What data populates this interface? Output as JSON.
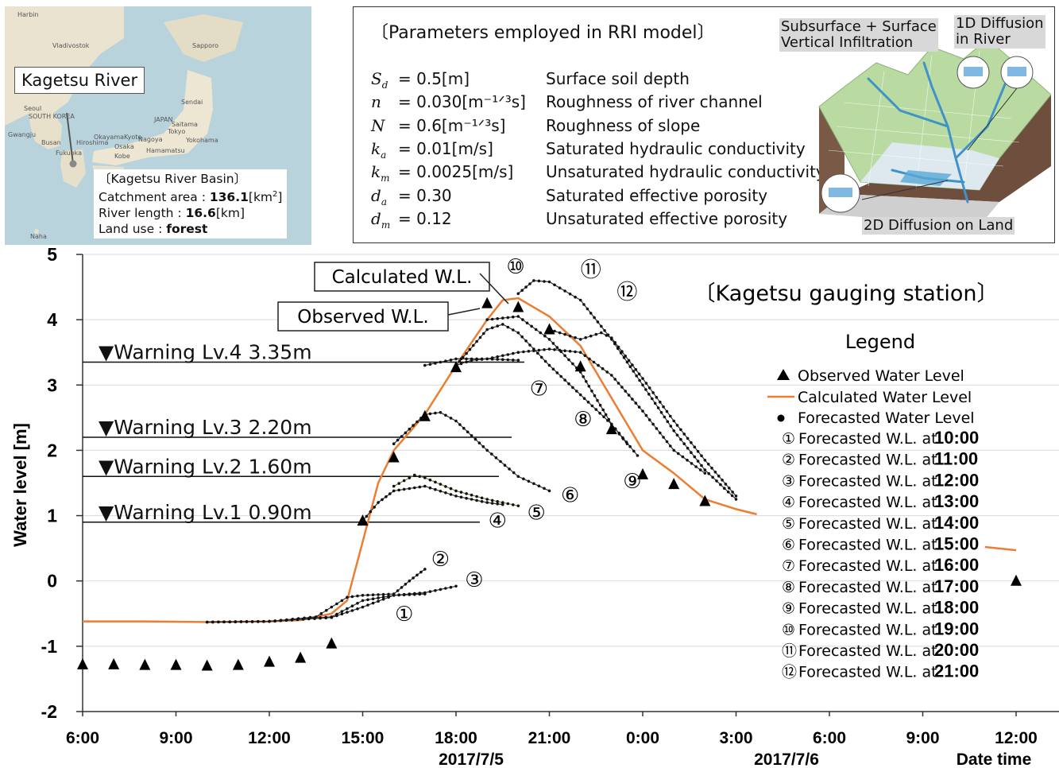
{
  "map": {
    "callout": "Kagetsu River",
    "info_title": "〔Kagetsu River Basin〕",
    "catchment_label": "Catchment area : ",
    "catchment_value": "136.1",
    "catchment_unit": "[km",
    "catchment_unit_sup": "2",
    "catchment_unit_end": "]",
    "river_label": "River length : ",
    "river_value": "16.6",
    "river_unit": "[km]",
    "landuse_label": "Land use : ",
    "landuse_value": "forest",
    "place_labels": [
      "Harbin",
      "Vladivostok",
      "Sapporo",
      "Seoul",
      "SOUTH KOREA",
      "Busan",
      "Fukuoka",
      "Hiroshima",
      "Osaka",
      "Kobe",
      "Nagoya",
      "Tokyo",
      "Yokohama",
      "Sendai",
      "JAPAN",
      "Naha",
      "Gwangju",
      "Okayama",
      "Hamamatsu",
      "Saitama",
      "Kyoto"
    ]
  },
  "params": {
    "title": "〔Parameters employed in RRI model〕",
    "rows": [
      {
        "sym": "S",
        "sub": "d",
        "eq": "= 0.5[m]",
        "desc": "Surface soil depth"
      },
      {
        "sym": "n",
        "sub": "",
        "eq": "= 0.030[m⁻¹ᐟ³s]",
        "desc": "Roughness of river channel"
      },
      {
        "sym": "N",
        "sub": "",
        "eq": "= 0.6[m⁻¹ᐟ³s]",
        "desc": "Roughness of slope"
      },
      {
        "sym": "k",
        "sub": "a",
        "eq": "= 0.01[m/s]",
        "desc": "Saturated hydraulic conductivity"
      },
      {
        "sym": "k",
        "sub": "m",
        "eq": "= 0.0025[m/s]",
        "desc": "Unsaturated hydraulic conductivity"
      },
      {
        "sym": "d",
        "sub": "a",
        "eq": "= 0.30",
        "desc": "Saturated effective porosity"
      },
      {
        "sym": "d",
        "sub": "m",
        "eq": "= 0.12",
        "desc": "Unsaturated effective porosity"
      }
    ],
    "diagram": {
      "label_subsurface_1": "Subsurface + Surface",
      "label_subsurface_2": "Vertical Infiltration",
      "label_river_1": "1D Diffusion",
      "label_river_2": "in River",
      "label_land": "2D Diffusion on Land"
    }
  },
  "chart_data": {
    "type": "line",
    "ylabel": "Water level [m]",
    "xlabel": "Date time",
    "ylim": [
      -2,
      5
    ],
    "yticks": [
      "-2",
      "-1",
      "0",
      "1",
      "2",
      "3",
      "4",
      "5"
    ],
    "xtick_labels": [
      "6:00",
      "9:00",
      "12:00",
      "15:00",
      "18:00",
      "21:00",
      "0:00",
      "3:00",
      "6:00",
      "9:00",
      "12:00"
    ],
    "date_labels": [
      "2017/7/5",
      "2017/7/6"
    ],
    "station_title": "〔Kagetsu gauging station〕",
    "callout_calculated": "Calculated W.L.",
    "callout_observed": "Observed W.L.",
    "warnings": [
      {
        "label": "▼Warning Lv.4  3.35m",
        "level": 3.35
      },
      {
        "label": "▼Warning Lv.3  2.20m",
        "level": 2.2
      },
      {
        "label": "▼Warning Lv.2  1.60m",
        "level": 1.6
      },
      {
        "label": "▼Warning Lv.1  0.90m",
        "level": 0.9
      }
    ],
    "legend_title": "Legend",
    "legend": {
      "observed": "Observed Water Level",
      "calculated": "Calculated Water Level",
      "forecasted": "Forecasted Water Level"
    },
    "forecast_legend_prefix": "Forecasted W.L. at ",
    "forecast_legend": [
      {
        "num": "①",
        "time": "10:00"
      },
      {
        "num": "②",
        "time": "11:00"
      },
      {
        "num": "③",
        "time": "12:00"
      },
      {
        "num": "④",
        "time": "13:00"
      },
      {
        "num": "⑤",
        "time": "14:00"
      },
      {
        "num": "⑥",
        "time": "15:00"
      },
      {
        "num": "⑦",
        "time": "16:00"
      },
      {
        "num": "⑧",
        "time": "17:00"
      },
      {
        "num": "⑨",
        "time": "18:00"
      },
      {
        "num": "⑩",
        "time": "19:00"
      },
      {
        "num": "⑪",
        "time": "20:00"
      },
      {
        "num": "⑫",
        "time": "21:00"
      }
    ],
    "colors": {
      "calculated": "#ed7d31",
      "observed": "#000000",
      "forecast": "#333333",
      "forecast5": "#6b8e3a"
    },
    "observed": [
      {
        "x": "2017-07-05 06:00",
        "y": -1.28
      },
      {
        "x": "2017-07-05 07:00",
        "y": -1.28
      },
      {
        "x": "2017-07-05 08:00",
        "y": -1.29
      },
      {
        "x": "2017-07-05 09:00",
        "y": -1.29
      },
      {
        "x": "2017-07-05 10:00",
        "y": -1.3
      },
      {
        "x": "2017-07-05 11:00",
        "y": -1.29
      },
      {
        "x": "2017-07-05 12:00",
        "y": -1.24
      },
      {
        "x": "2017-07-05 13:00",
        "y": -1.18
      },
      {
        "x": "2017-07-05 14:00",
        "y": -0.96
      },
      {
        "x": "2017-07-05 15:00",
        "y": 0.92
      },
      {
        "x": "2017-07-05 16:00",
        "y": 1.89
      },
      {
        "x": "2017-07-05 17:00",
        "y": 2.52
      },
      {
        "x": "2017-07-05 18:00",
        "y": 3.27
      },
      {
        "x": "2017-07-05 19:00",
        "y": 4.25
      },
      {
        "x": "2017-07-05 20:00",
        "y": 4.19
      },
      {
        "x": "2017-07-05 21:00",
        "y": 3.85
      },
      {
        "x": "2017-07-05 22:00",
        "y": 3.28
      },
      {
        "x": "2017-07-05 23:00",
        "y": 2.32
      },
      {
        "x": "2017-07-06 00:00",
        "y": 1.63
      },
      {
        "x": "2017-07-06 01:00",
        "y": 1.48
      },
      {
        "x": "2017-07-06 02:00",
        "y": 1.22
      },
      {
        "x": "2017-07-06 12:00",
        "y": 0.0
      }
    ],
    "calculated": [
      {
        "x": "2017-07-05 06:00",
        "y": -0.62
      },
      {
        "x": "2017-07-05 08:00",
        "y": -0.62
      },
      {
        "x": "2017-07-05 10:00",
        "y": -0.63
      },
      {
        "x": "2017-07-05 12:00",
        "y": -0.62
      },
      {
        "x": "2017-07-05 13:00",
        "y": -0.6
      },
      {
        "x": "2017-07-05 14:00",
        "y": -0.5
      },
      {
        "x": "2017-07-05 14:30",
        "y": -0.3
      },
      {
        "x": "2017-07-05 15:00",
        "y": 0.6
      },
      {
        "x": "2017-07-05 15:30",
        "y": 1.5
      },
      {
        "x": "2017-07-05 16:00",
        "y": 2.0
      },
      {
        "x": "2017-07-05 17:00",
        "y": 2.55
      },
      {
        "x": "2017-07-05 18:00",
        "y": 3.3
      },
      {
        "x": "2017-07-05 19:00",
        "y": 4.0
      },
      {
        "x": "2017-07-05 19:30",
        "y": 4.3
      },
      {
        "x": "2017-07-05 20:00",
        "y": 4.33
      },
      {
        "x": "2017-07-05 21:00",
        "y": 4.05
      },
      {
        "x": "2017-07-05 22:00",
        "y": 3.6
      },
      {
        "x": "2017-07-05 23:00",
        "y": 2.8
      },
      {
        "x": "2017-07-06 00:00",
        "y": 2.0
      },
      {
        "x": "2017-07-06 01:00",
        "y": 1.65
      },
      {
        "x": "2017-07-06 02:00",
        "y": 1.25
      },
      {
        "x": "2017-07-06 03:00",
        "y": 1.1
      },
      {
        "x": "2017-07-06 03:40",
        "y": 1.02
      }
    ],
    "calculated_tail": [
      {
        "x": "2017-07-06 11:00",
        "y": 0.52
      },
      {
        "x": "2017-07-06 12:00",
        "y": 0.47
      }
    ],
    "forecasts": [
      {
        "id": "①",
        "points": [
          {
            "x": "2017-07-05 10:00",
            "y": -0.63
          },
          {
            "x": "2017-07-05 12:00",
            "y": -0.62
          },
          {
            "x": "2017-07-05 14:00",
            "y": -0.56
          },
          {
            "x": "2017-07-05 15:00",
            "y": -0.4
          },
          {
            "x": "2017-07-05 16:00",
            "y": -0.22
          },
          {
            "x": "2017-07-05 17:00",
            "y": -0.2
          }
        ],
        "label": {
          "x": "2017-07-05 16:20",
          "y": -0.5
        }
      },
      {
        "id": "②",
        "points": [
          {
            "x": "2017-07-05 10:00",
            "y": -0.63
          },
          {
            "x": "2017-07-05 12:00",
            "y": -0.62
          },
          {
            "x": "2017-07-05 13:30",
            "y": -0.55
          },
          {
            "x": "2017-07-05 14:00",
            "y": -0.4
          },
          {
            "x": "2017-07-05 14:30",
            "y": -0.25
          },
          {
            "x": "2017-07-05 15:00",
            "y": -0.22
          },
          {
            "x": "2017-07-05 16:00",
            "y": -0.2
          },
          {
            "x": "2017-07-05 16:30",
            "y": 0.0
          },
          {
            "x": "2017-07-05 17:00",
            "y": 0.18
          }
        ],
        "label": {
          "x": "2017-07-05 17:30",
          "y": 0.34
        }
      },
      {
        "id": "③",
        "points": [
          {
            "x": "2017-07-05 10:00",
            "y": -0.63
          },
          {
            "x": "2017-07-05 12:00",
            "y": -0.62
          },
          {
            "x": "2017-07-05 14:00",
            "y": -0.55
          },
          {
            "x": "2017-07-05 15:00",
            "y": -0.3
          },
          {
            "x": "2017-07-05 16:00",
            "y": -0.22
          },
          {
            "x": "2017-07-05 17:00",
            "y": -0.18
          },
          {
            "x": "2017-07-05 18:00",
            "y": -0.08
          }
        ],
        "label": {
          "x": "2017-07-05 18:35",
          "y": 0.02
        }
      },
      {
        "id": "④",
        "points": [
          {
            "x": "2017-07-05 15:00",
            "y": 0.92
          },
          {
            "x": "2017-07-05 15:30",
            "y": 1.2
          },
          {
            "x": "2017-07-05 16:00",
            "y": 1.38
          },
          {
            "x": "2017-07-05 17:00",
            "y": 1.45
          },
          {
            "x": "2017-07-05 18:00",
            "y": 1.3
          },
          {
            "x": "2017-07-05 19:00",
            "y": 1.2
          },
          {
            "x": "2017-07-05 19:30",
            "y": 1.17
          }
        ],
        "label": {
          "x": "2017-07-05 19:20",
          "y": 0.93
        }
      },
      {
        "id": "⑤",
        "points": [
          {
            "x": "2017-07-05 16:00",
            "y": 1.45
          },
          {
            "x": "2017-07-05 16:40",
            "y": 1.62
          },
          {
            "x": "2017-07-05 17:00",
            "y": 1.58
          },
          {
            "x": "2017-07-05 18:00",
            "y": 1.38
          },
          {
            "x": "2017-07-05 19:00",
            "y": 1.25
          },
          {
            "x": "2017-07-05 20:00",
            "y": 1.15
          }
        ],
        "label": {
          "x": "2017-07-05 20:35",
          "y": 1.05
        }
      },
      {
        "id": "⑥",
        "points": [
          {
            "x": "2017-07-05 16:00",
            "y": 2.1
          },
          {
            "x": "2017-07-05 17:00",
            "y": 2.55
          },
          {
            "x": "2017-07-05 17:30",
            "y": 2.58
          },
          {
            "x": "2017-07-05 18:00",
            "y": 2.45
          },
          {
            "x": "2017-07-05 19:00",
            "y": 2.0
          },
          {
            "x": "2017-07-05 20:00",
            "y": 1.6
          },
          {
            "x": "2017-07-05 21:00",
            "y": 1.38
          }
        ],
        "label": {
          "x": "2017-07-05 21:40",
          "y": 1.32
        }
      },
      {
        "id": "⑦",
        "points": [
          {
            "x": "2017-07-05 18:00",
            "y": 3.3
          },
          {
            "x": "2017-07-05 18:30",
            "y": 3.38
          },
          {
            "x": "2017-07-05 19:00",
            "y": 3.4
          },
          {
            "x": "2017-07-05 20:00",
            "y": 3.38
          }
        ],
        "label": {
          "x": "2017-07-05 20:40",
          "y": 2.95
        }
      },
      {
        "id": "⑧",
        "points": [
          {
            "x": "2017-07-05 18:00",
            "y": 3.3
          },
          {
            "x": "2017-07-05 19:00",
            "y": 3.85
          },
          {
            "x": "2017-07-05 19:30",
            "y": 3.93
          },
          {
            "x": "2017-07-05 20:00",
            "y": 3.8
          },
          {
            "x": "2017-07-05 21:00",
            "y": 3.3
          },
          {
            "x": "2017-07-05 22:00",
            "y": 2.85
          },
          {
            "x": "2017-07-05 23:00",
            "y": 2.4
          },
          {
            "x": "2017-07-05 23:30",
            "y": 2.1
          }
        ],
        "label": {
          "x": "2017-07-05 22:05",
          "y": 2.48
        }
      },
      {
        "id": "⑨",
        "points": [
          {
            "x": "2017-07-05 19:00",
            "y": 4.0
          },
          {
            "x": "2017-07-05 20:00",
            "y": 4.05
          },
          {
            "x": "2017-07-05 21:00",
            "y": 3.7
          },
          {
            "x": "2017-07-05 22:00",
            "y": 3.2
          },
          {
            "x": "2017-07-05 23:00",
            "y": 2.4
          },
          {
            "x": "2017-07-05 23:50",
            "y": 1.92
          }
        ],
        "label": {
          "x": "2017-07-05 23:40",
          "y": 1.53
        }
      },
      {
        "id": "⑩",
        "points": [
          {
            "x": "2017-07-05 20:00",
            "y": 4.4
          },
          {
            "x": "2017-07-05 20:30",
            "y": 4.6
          },
          {
            "x": "2017-07-05 21:00",
            "y": 4.58
          },
          {
            "x": "2017-07-05 22:00",
            "y": 4.3
          },
          {
            "x": "2017-07-05 23:00",
            "y": 3.7
          },
          {
            "x": "2017-07-06 00:00",
            "y": 3.0
          },
          {
            "x": "2017-07-06 01:00",
            "y": 2.3
          },
          {
            "x": "2017-07-06 02:00",
            "y": 1.7
          },
          {
            "x": "2017-07-06 03:00",
            "y": 1.25
          }
        ],
        "label": {
          "x": "2017-07-05 19:55",
          "y": 4.82
        }
      },
      {
        "id": "⑪",
        "points": [
          {
            "x": "2017-07-05 17:00",
            "y": 3.3
          },
          {
            "x": "2017-07-05 18:00",
            "y": 3.4
          },
          {
            "x": "2017-07-05 19:00",
            "y": 3.4
          },
          {
            "x": "2017-07-05 20:00",
            "y": 3.5
          },
          {
            "x": "2017-07-05 21:00",
            "y": 3.55
          },
          {
            "x": "2017-07-05 22:00",
            "y": 3.5
          },
          {
            "x": "2017-07-05 23:00",
            "y": 3.15
          },
          {
            "x": "2017-07-06 00:00",
            "y": 2.6
          },
          {
            "x": "2017-07-06 01:00",
            "y": 2.0
          },
          {
            "x": "2017-07-06 02:00",
            "y": 1.65
          }
        ],
        "label": {
          "x": "2017-07-05 22:20",
          "y": 4.77
        }
      },
      {
        "id": "⑫",
        "points": [
          {
            "x": "2017-07-05 21:00",
            "y": 3.85
          },
          {
            "x": "2017-07-05 22:00",
            "y": 3.7
          },
          {
            "x": "2017-07-05 22:40",
            "y": 3.8
          },
          {
            "x": "2017-07-05 23:00",
            "y": 3.72
          },
          {
            "x": "2017-07-06 00:00",
            "y": 3.1
          },
          {
            "x": "2017-07-06 01:00",
            "y": 2.45
          },
          {
            "x": "2017-07-06 02:00",
            "y": 1.85
          },
          {
            "x": "2017-07-06 03:00",
            "y": 1.3
          }
        ],
        "label": {
          "x": "2017-07-05 23:30",
          "y": 4.43
        }
      }
    ]
  }
}
